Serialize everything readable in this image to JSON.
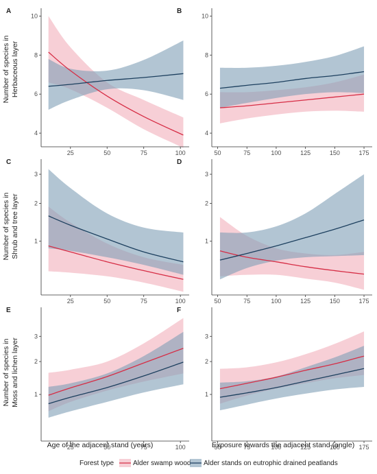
{
  "colors": {
    "alder_swamp": "#d62d45",
    "alder_swamp_band": "#f0a7b4",
    "alder_drained": "#1c3f5e",
    "alder_drained_band": "#7f9fb6"
  },
  "legend": {
    "title": "Forest type",
    "items": [
      "Alder swamp wood",
      "Alder stands on eutrophic drained peatlands"
    ]
  },
  "rows": [
    {
      "ylabel_lines": [
        "Number of species in",
        "Herbaceous layer"
      ]
    },
    {
      "ylabel_lines": [
        "Number of species in",
        "Shrub and tree layer"
      ]
    },
    {
      "ylabel_lines": [
        "Number of species in",
        "Moss and lichen layer"
      ]
    }
  ],
  "columns": [
    {
      "xlabel": "Age of the adjacent stand (years)"
    },
    {
      "xlabel": "Exposure towards the adjacent stand (angle)"
    }
  ],
  "chart_data": [
    {
      "panel": "A",
      "type": "line",
      "xlabel": "",
      "ylabel": "",
      "xlim": [
        5,
        106
      ],
      "ylim": [
        3.3,
        10.4
      ],
      "xticks": [
        25,
        50,
        75,
        100
      ],
      "yticks": [
        4,
        6,
        8,
        10
      ],
      "ytick_labels": [
        "4",
        "6",
        "8",
        "10"
      ],
      "scale": "linear",
      "series": [
        {
          "name": "Alder swamp wood",
          "x": [
            10,
            25,
            50,
            75,
            102
          ],
          "y": [
            8.15,
            7.2,
            5.9,
            4.85,
            3.9
          ],
          "lower": [
            6.6,
            6.25,
            5.3,
            4.2,
            3.25
          ],
          "upper": [
            10.0,
            8.4,
            6.6,
            5.7,
            4.8
          ]
        },
        {
          "name": "Alder stands on eutrophic drained peatlands",
          "x": [
            10,
            25,
            50,
            75,
            102
          ],
          "y": [
            6.4,
            6.5,
            6.7,
            6.85,
            7.05
          ],
          "lower": [
            5.2,
            5.7,
            6.25,
            6.2,
            5.7
          ],
          "upper": [
            7.8,
            7.3,
            7.2,
            7.75,
            8.75
          ]
        }
      ]
    },
    {
      "panel": "B",
      "type": "line",
      "xlabel": "",
      "ylabel": "",
      "xlim": [
        45,
        182
      ],
      "ylim": [
        3.3,
        10.4
      ],
      "xticks": [
        50,
        75,
        100,
        125,
        150,
        175
      ],
      "yticks": [
        4,
        6,
        8,
        10
      ],
      "ytick_labels": [
        "4",
        "6",
        "8",
        "10"
      ],
      "scale": "linear",
      "series": [
        {
          "name": "Alder swamp wood",
          "x": [
            52,
            75,
            100,
            125,
            150,
            175
          ],
          "y": [
            5.3,
            5.4,
            5.55,
            5.7,
            5.85,
            6.0
          ],
          "lower": [
            4.5,
            4.75,
            4.95,
            5.1,
            5.15,
            5.1
          ],
          "upper": [
            6.1,
            6.1,
            6.2,
            6.35,
            6.6,
            7.0
          ]
        },
        {
          "name": "Alder stands on eutrophic drained peatlands",
          "x": [
            52,
            75,
            100,
            125,
            150,
            175
          ],
          "y": [
            6.3,
            6.45,
            6.6,
            6.8,
            6.95,
            7.15
          ],
          "lower": [
            5.3,
            5.55,
            5.8,
            6.0,
            6.1,
            6.05
          ],
          "upper": [
            7.35,
            7.35,
            7.45,
            7.65,
            7.95,
            8.45
          ]
        }
      ]
    },
    {
      "panel": "C",
      "type": "line",
      "xlabel": "",
      "ylabel": "",
      "xlim": [
        5,
        106
      ],
      "ylim": [
        0.17,
        3.6
      ],
      "xticks": [
        25,
        50,
        75,
        100
      ],
      "yticks": [
        1,
        2,
        3
      ],
      "ytick_labels": [
        "1",
        "2",
        "3"
      ],
      "scale": "sqrt",
      "series": [
        {
          "name": "Alder swamp wood",
          "x": [
            10,
            25,
            50,
            75,
            102
          ],
          "y": [
            0.9,
            0.78,
            0.6,
            0.46,
            0.34
          ],
          "lower": [
            0.45,
            0.43,
            0.38,
            0.3,
            0.2
          ],
          "upper": [
            1.9,
            1.45,
            0.95,
            0.68,
            0.55
          ]
        },
        {
          "name": "Alder stands on eutrophic drained peatlands",
          "x": [
            10,
            25,
            50,
            75,
            102
          ],
          "y": [
            1.63,
            1.38,
            1.05,
            0.78,
            0.6
          ],
          "lower": [
            0.85,
            0.8,
            0.68,
            0.55,
            0.4
          ],
          "upper": [
            3.2,
            2.5,
            1.7,
            1.32,
            1.2
          ]
        }
      ]
    },
    {
      "panel": "D",
      "type": "line",
      "xlabel": "",
      "ylabel": "",
      "xlim": [
        45,
        182
      ],
      "ylim": [
        0.17,
        3.6
      ],
      "xticks": [
        50,
        75,
        100,
        125,
        150,
        175
      ],
      "yticks": [
        1,
        2,
        3
      ],
      "ytick_labels": [
        "1",
        "2",
        "3"
      ],
      "scale": "sqrt",
      "series": [
        {
          "name": "Alder swamp wood",
          "x": [
            52,
            75,
            100,
            125,
            150,
            175
          ],
          "y": [
            0.8,
            0.68,
            0.6,
            0.52,
            0.46,
            0.41
          ],
          "lower": [
            0.38,
            0.4,
            0.4,
            0.35,
            0.3,
            0.22
          ],
          "upper": [
            1.6,
            1.12,
            0.85,
            0.75,
            0.72,
            0.78
          ]
        },
        {
          "name": "Alder stands on eutrophic drained peatlands",
          "x": [
            52,
            75,
            100,
            125,
            150,
            175
          ],
          "y": [
            0.63,
            0.75,
            0.9,
            1.08,
            1.28,
            1.52
          ],
          "lower": [
            0.34,
            0.5,
            0.62,
            0.68,
            0.7,
            0.72
          ],
          "upper": [
            1.2,
            1.2,
            1.35,
            1.7,
            2.3,
            3.0
          ]
        }
      ]
    },
    {
      "panel": "E",
      "type": "line",
      "xlabel": "",
      "ylabel": "",
      "xlim": [
        5,
        106
      ],
      "ylim": [
        0.17,
        4.4
      ],
      "xticks": [
        25,
        50,
        75,
        100
      ],
      "yticks": [
        1,
        2,
        3
      ],
      "ytick_labels": [
        "1",
        "2",
        "3"
      ],
      "scale": "sqrt",
      "series": [
        {
          "name": "Alder swamp wood",
          "x": [
            10,
            25,
            50,
            75,
            102
          ],
          "y": [
            0.98,
            1.17,
            1.5,
            1.95,
            2.5
          ],
          "lower": [
            0.62,
            0.82,
            1.1,
            1.35,
            1.6
          ],
          "upper": [
            1.62,
            1.72,
            2.0,
            2.7,
            3.85
          ]
        },
        {
          "name": "Alder stands on eutrophic drained peatlands",
          "x": [
            10,
            25,
            50,
            75,
            102
          ],
          "y": [
            0.78,
            0.93,
            1.18,
            1.52,
            1.98
          ],
          "lower": [
            0.5,
            0.62,
            0.82,
            1.05,
            1.27
          ],
          "upper": [
            1.2,
            1.3,
            1.6,
            2.2,
            3.2
          ]
        }
      ]
    },
    {
      "panel": "F",
      "type": "line",
      "xlabel": "",
      "ylabel": "",
      "xlim": [
        45,
        182
      ],
      "ylim": [
        0.17,
        4.4
      ],
      "xticks": [
        50,
        75,
        100,
        125,
        150,
        175
      ],
      "yticks": [
        1,
        2,
        3
      ],
      "ytick_labels": [
        "1",
        "2",
        "3"
      ],
      "scale": "sqrt",
      "series": [
        {
          "name": "Alder swamp wood",
          "x": [
            52,
            75,
            100,
            125,
            150,
            175
          ],
          "y": [
            1.15,
            1.3,
            1.48,
            1.7,
            1.92,
            2.2
          ],
          "lower": [
            0.78,
            0.97,
            1.15,
            1.3,
            1.45,
            1.55
          ],
          "upper": [
            1.75,
            1.8,
            1.97,
            2.27,
            2.68,
            3.22
          ]
        },
        {
          "name": "Alder stands on eutrophic drained peatlands",
          "x": [
            52,
            75,
            100,
            125,
            150,
            175
          ],
          "y": [
            0.93,
            1.04,
            1.18,
            1.36,
            1.55,
            1.76
          ],
          "lower": [
            0.64,
            0.76,
            0.9,
            1.02,
            1.13,
            1.2
          ],
          "upper": [
            1.32,
            1.36,
            1.5,
            1.8,
            2.15,
            2.6
          ]
        }
      ]
    }
  ]
}
